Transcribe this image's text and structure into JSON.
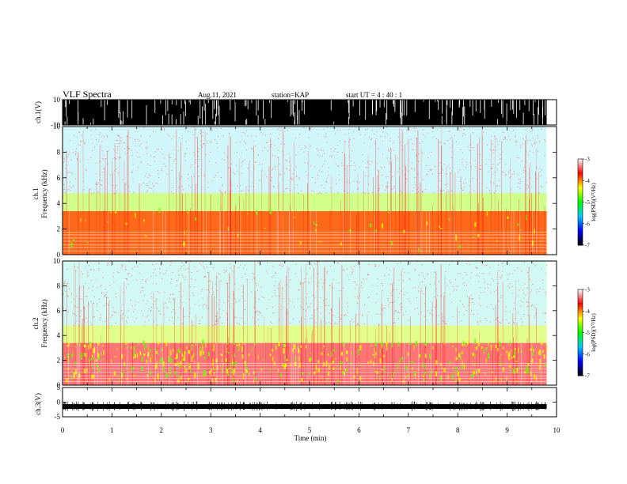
{
  "header": {
    "title": "VLF Spectra",
    "date": "Aug.11, 2021",
    "station": "station=KAP",
    "start": "start  UT =   4 : 40 : 1"
  },
  "chart_data": [
    {
      "type": "line",
      "panel": "ch1-waveform",
      "ylabel": "ch.1(V)",
      "ylim": [
        -10,
        10
      ],
      "yticks": [
        "10",
        "-10"
      ],
      "xlim": [
        0,
        10
      ],
      "data_extent_min": 9.8,
      "description_values": {
        "baseline": -10,
        "envelope_max": 10,
        "saturated_fraction": 0.9
      }
    },
    {
      "type": "heatmap",
      "panel": "ch1-spectrogram",
      "ylabel": "ch.1 Frequency (kHz)",
      "ylabel_line1": "ch.1",
      "ylabel_line2": "Frequency  (kHz)",
      "ylim": [
        0,
        10
      ],
      "yticks": [
        "0",
        "2",
        "4",
        "6",
        "8",
        "10"
      ],
      "xlim": [
        0,
        10
      ],
      "data_extent_min": 9.8,
      "bands_khz": [
        {
          "from": 0.0,
          "to": 3.4,
          "level": -3.9
        },
        {
          "from": 3.4,
          "to": 4.8,
          "level": -4.6
        },
        {
          "from": 4.8,
          "to": 10.0,
          "level": -5.6
        }
      ]
    },
    {
      "type": "heatmap",
      "panel": "ch2-spectrogram",
      "ylabel": "ch.2 Frequency (kHz)",
      "ylabel_line1": "ch.2",
      "ylabel_line2": "Frequency  (kHz)",
      "ylim": [
        0,
        10
      ],
      "yticks": [
        "0",
        "2",
        "4",
        "6",
        "8",
        "10"
      ],
      "xlim": [
        0,
        10
      ],
      "data_extent_min": 9.8,
      "bands_khz": [
        {
          "from": 0.0,
          "to": 3.4,
          "level": -3.4
        },
        {
          "from": 3.4,
          "to": 4.8,
          "level": -4.5
        },
        {
          "from": 4.8,
          "to": 10.0,
          "level": -5.5
        }
      ]
    },
    {
      "type": "line",
      "panel": "ch3-waveform",
      "ylabel": "ch.3(V)",
      "ylim": [
        -5,
        5
      ],
      "yticks": [
        "5",
        "0",
        "-5"
      ],
      "xlim": [
        0,
        10
      ],
      "data_extent_min": 9.8,
      "description_values": {
        "mean": -1.5
      }
    }
  ],
  "xaxis": {
    "label": "Time  (min)",
    "ticks": [
      "0",
      "1",
      "2",
      "3",
      "4",
      "5",
      "6",
      "7",
      "8",
      "9",
      "10"
    ]
  },
  "colorbar": {
    "label": "log(PSD)(V²/Hz)",
    "range": [
      -7,
      -3
    ],
    "ticks": [
      "-3",
      "-4",
      "-5",
      "-6",
      "-7"
    ],
    "colors": [
      "#000000",
      "#0000ff",
      "#00c8ff",
      "#00ff00",
      "#ffff00",
      "#ff0000",
      "#ffffff"
    ]
  }
}
